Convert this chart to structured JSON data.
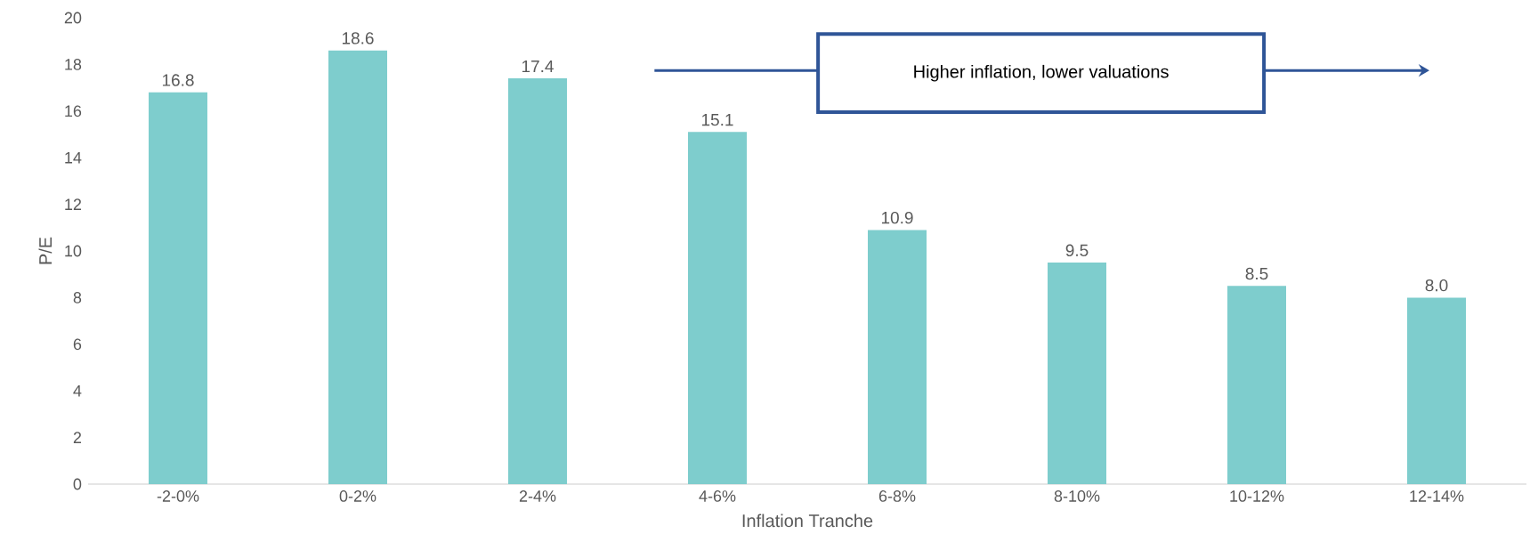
{
  "chart_data": {
    "type": "bar",
    "xlabel": "Inflation Tranche",
    "ylabel": "P/E",
    "categories": [
      "-2-0%",
      "0-2%",
      "2-4%",
      "4-6%",
      "6-8%",
      "8-10%",
      "10-12%",
      "12-14%"
    ],
    "values": [
      16.8,
      18.6,
      17.4,
      15.1,
      10.9,
      9.5,
      8.5,
      8.0
    ],
    "value_labels": [
      "16.8",
      "18.6",
      "17.4",
      "15.1",
      "10.9",
      "9.5",
      "8.5",
      "8.0"
    ],
    "color": "#7ecdcd",
    "ylim": [
      0,
      20
    ],
    "yticks": [
      0,
      2,
      4,
      6,
      8,
      10,
      12,
      14,
      16,
      18,
      20
    ],
    "annotations": [
      "Higher inflation, lower valuations"
    ]
  }
}
